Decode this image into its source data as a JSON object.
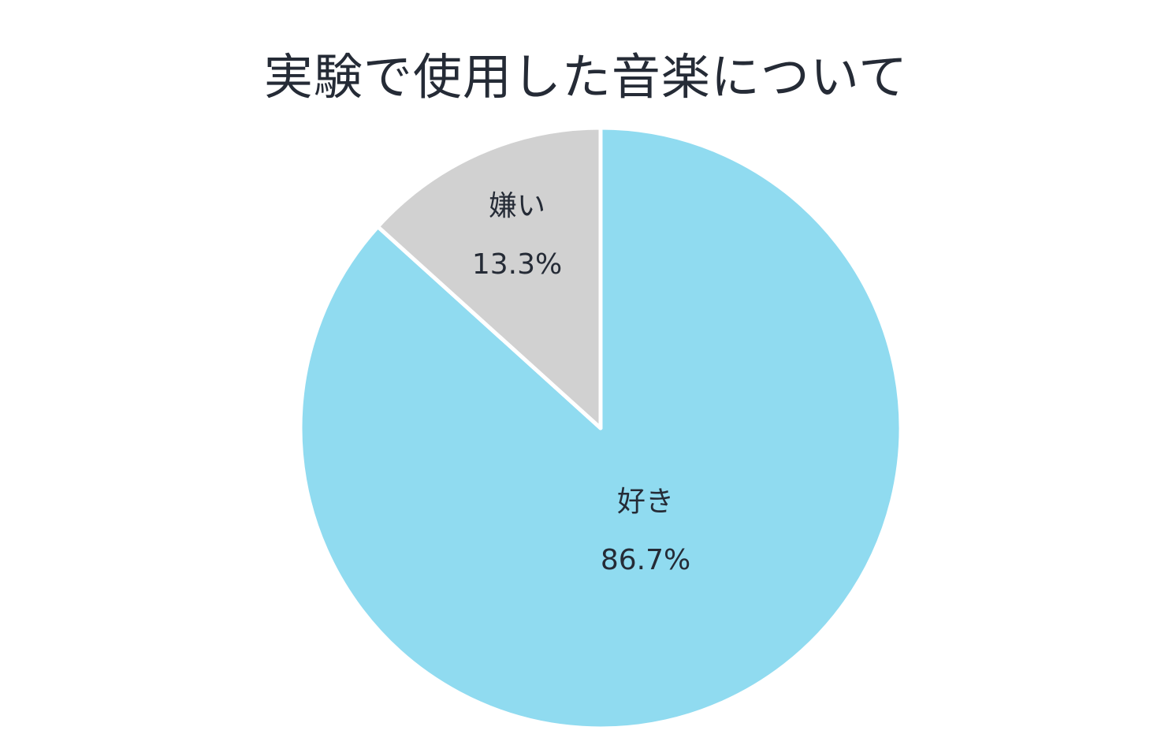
{
  "chart_data": {
    "type": "pie",
    "title": "実験で使用した音楽について",
    "slices": [
      {
        "label": "好き",
        "value": 86.7,
        "value_label": "86.7%",
        "color": "#90dbf0"
      },
      {
        "label": "嫌い",
        "value": 13.3,
        "value_label": "13.3%",
        "color": "#d1d1d1"
      }
    ],
    "legend": "none",
    "start_angle": "12 o'clock",
    "direction": "clockwise"
  }
}
